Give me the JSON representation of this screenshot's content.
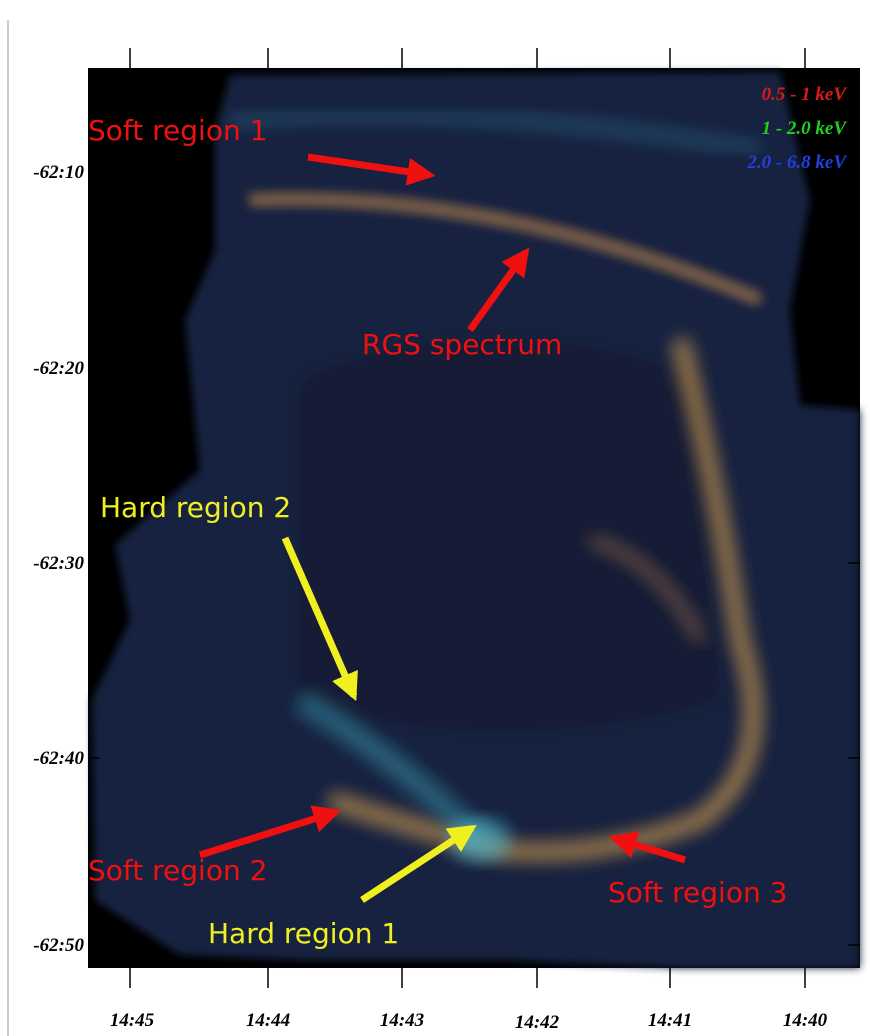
{
  "axes": {
    "y_ticks": [
      "-62:10",
      "-62:20",
      "-62:30",
      "-62:40",
      "-62:50"
    ],
    "x_ticks": [
      "14:45",
      "14:44",
      "14:43",
      "14:42",
      "14:41",
      "14:40"
    ]
  },
  "legend": [
    "0.5 - 1 keV",
    "1 - 2.0 keV",
    "2.0 - 6.8 keV"
  ],
  "annotations": [
    "Soft region 1",
    "RGS spectrum",
    "Hard region 2",
    "Soft region 2",
    "Hard region 1",
    "Soft region 3"
  ]
}
